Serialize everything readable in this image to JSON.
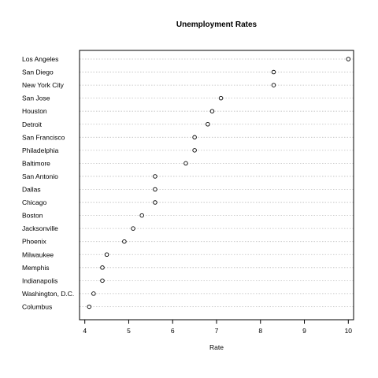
{
  "chart_data": {
    "type": "scatter",
    "title": "Unemployment Rates",
    "xlabel": "Rate",
    "ylabel": "",
    "xlim": [
      3.88,
      10.12
    ],
    "xticks": [
      4,
      5,
      6,
      7,
      8,
      9,
      10
    ],
    "grid": "dotted horizontal guide lines",
    "categories": [
      "Los Angeles",
      "San Diego",
      "New York City",
      "San Jose",
      "Houston",
      "Detroit",
      "San Francisco",
      "Philadelphia",
      "Baltimore",
      "San Antonio",
      "Dallas",
      "Chicago",
      "Boston",
      "Jacksonville",
      "Phoenix",
      "Milwaukee",
      "Memphis",
      "Indianapolis",
      "Washington, D.C.",
      "Columbus"
    ],
    "values": [
      10.0,
      8.3,
      8.3,
      7.1,
      6.9,
      6.8,
      6.5,
      6.5,
      6.3,
      5.6,
      5.6,
      5.6,
      5.3,
      5.1,
      4.9,
      4.5,
      4.4,
      4.4,
      4.2,
      4.1
    ]
  }
}
